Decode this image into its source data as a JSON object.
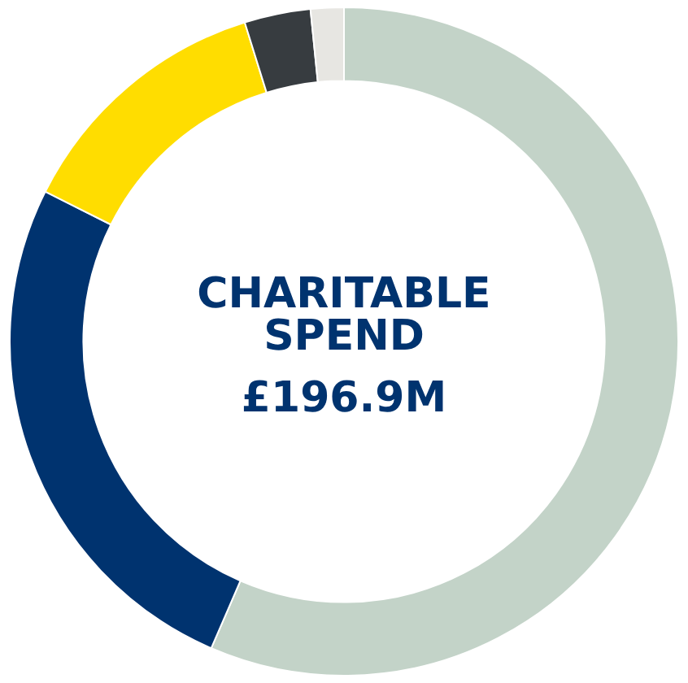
{
  "chart_data": {
    "type": "donut",
    "title": "CHARITABLE SPEND",
    "subtitle": "£196.9M",
    "categories": [
      null,
      null,
      null,
      null,
      null
    ],
    "values": [
      56.5,
      25.9,
      12.8,
      3.2,
      1.6
    ],
    "colors": [
      "#c3d3c8",
      "#00336f",
      "#ffdd00",
      "#373c40",
      "#e7e6e2"
    ],
    "legend": false
  }
}
